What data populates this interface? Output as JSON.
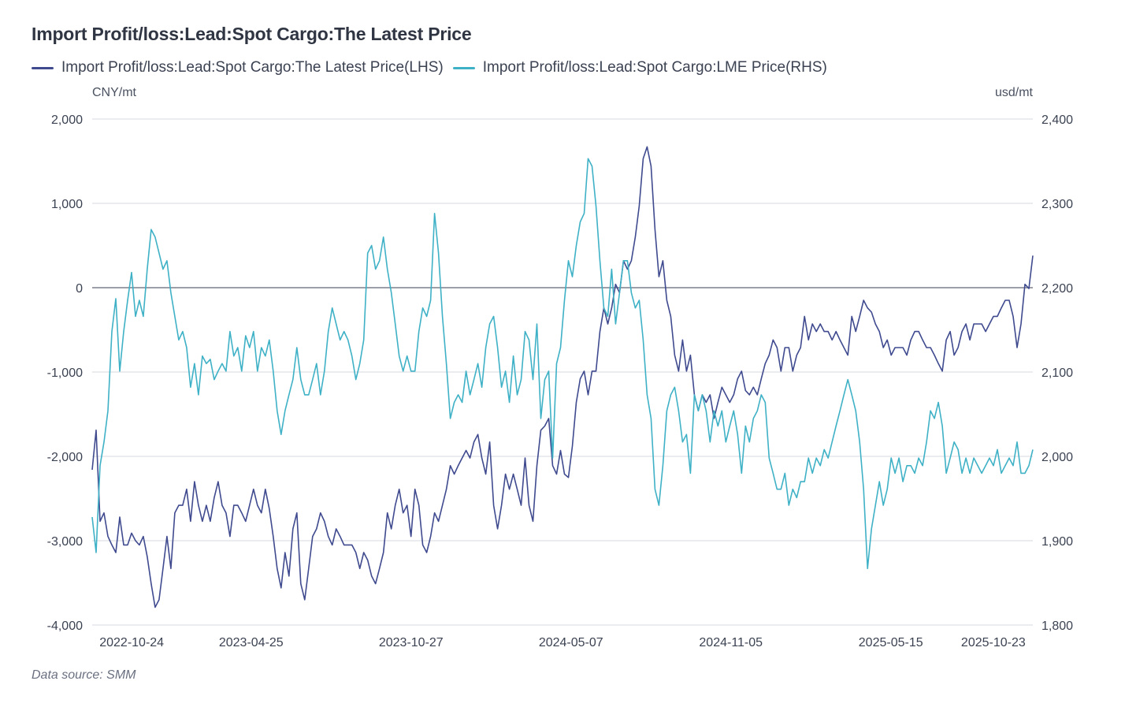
{
  "header": {
    "title": "Import Profit/loss:Lead:Spot Cargo:The Latest Price"
  },
  "legend": [
    {
      "label": "Import Profit/loss:Lead:Spot Cargo:The Latest Price(LHS)",
      "color": "#3f4a8f"
    },
    {
      "label": "Import Profit/loss:Lead:Spot Cargo:LME Price(RHS)",
      "color": "#3fb1c6"
    }
  ],
  "axes": {
    "left_unit": "CNY/mt",
    "right_unit": "usd/mt"
  },
  "footer": {
    "source": "Data source:  SMM"
  },
  "chart_data": {
    "type": "line",
    "title": "Import Profit/loss:Lead:Spot Cargo:The Latest Price",
    "xlabel": "",
    "ylabel_left": "CNY/mt",
    "ylabel_right": "usd/mt",
    "grid": true,
    "legend_position": "top-left",
    "x_tick_labels": [
      {
        "label": "2022-10-24",
        "pos": 0.042
      },
      {
        "label": "2023-04-25",
        "pos": 0.169
      },
      {
        "label": "2023-10-27",
        "pos": 0.339
      },
      {
        "label": "2024-05-07",
        "pos": 0.509
      },
      {
        "label": "2024-11-05",
        "pos": 0.679
      },
      {
        "label": "2025-05-15",
        "pos": 0.849
      },
      {
        "label": "2025-10-23",
        "pos": 0.958
      }
    ],
    "y_left": {
      "min": -4000,
      "max": 2000,
      "ticks": [
        2000,
        1000,
        0,
        -1000,
        -2000,
        -3000,
        -4000
      ],
      "tick_labels": [
        "2,000",
        "1,000",
        "0",
        "-1,000",
        "-2,000",
        "-3,000",
        "-4,000"
      ]
    },
    "y_right": {
      "min": 1800,
      "max": 2400,
      "ticks": [
        2400,
        2300,
        2200,
        2100,
        2000,
        1900,
        1800
      ],
      "tick_labels": [
        "2,400",
        "2,300",
        "2,200",
        "2,100",
        "2,000",
        "1,900",
        "1,800"
      ]
    },
    "zero_line_left": 0,
    "series": [
      {
        "name": "Import Profit/loss:Lead:Spot Cargo:The Latest Price(LHS)",
        "axis": "left",
        "color": "#3f4a8f",
        "values": [
          -2160,
          -1690,
          -2770,
          -2670,
          -2950,
          -3050,
          -3140,
          -2720,
          -3050,
          -3050,
          -2910,
          -3000,
          -3050,
          -2950,
          -3190,
          -3510,
          -3790,
          -3700,
          -3330,
          -2950,
          -3330,
          -2670,
          -2580,
          -2580,
          -2390,
          -2770,
          -2300,
          -2580,
          -2770,
          -2580,
          -2770,
          -2490,
          -2300,
          -2580,
          -2670,
          -2950,
          -2580,
          -2580,
          -2670,
          -2770,
          -2580,
          -2390,
          -2580,
          -2670,
          -2390,
          -2620,
          -2950,
          -3330,
          -3560,
          -3140,
          -3420,
          -2860,
          -2670,
          -3510,
          -3700,
          -3330,
          -2950,
          -2860,
          -2670,
          -2770,
          -2950,
          -3050,
          -2860,
          -2950,
          -3050,
          -3050,
          -3050,
          -3140,
          -3330,
          -3140,
          -3230,
          -3420,
          -3510,
          -3330,
          -3140,
          -2670,
          -2860,
          -2580,
          -2390,
          -2670,
          -2580,
          -2950,
          -2390,
          -2580,
          -3050,
          -3140,
          -2950,
          -2670,
          -2770,
          -2580,
          -2390,
          -2110,
          -2210,
          -2110,
          -2020,
          -1930,
          -2020,
          -1830,
          -1740,
          -2020,
          -2210,
          -1830,
          -2580,
          -2860,
          -2580,
          -2210,
          -2390,
          -2210,
          -2390,
          -2580,
          -2020,
          -2580,
          -2770,
          -2110,
          -1690,
          -1640,
          -1550,
          -2110,
          -2210,
          -1930,
          -2210,
          -2250,
          -1880,
          -1360,
          -1080,
          -990,
          -1270,
          -990,
          -990,
          -520,
          -240,
          -430,
          -240,
          40,
          -60,
          320,
          220,
          320,
          600,
          970,
          1530,
          1670,
          1440,
          690,
          130,
          320,
          -150,
          -340,
          -800,
          -990,
          -620,
          -990,
          -800,
          -1270,
          -1460,
          -1270,
          -1360,
          -1270,
          -1550,
          -1360,
          -1180,
          -1270,
          -1360,
          -1270,
          -1080,
          -990,
          -1220,
          -1270,
          -1180,
          -1270,
          -1080,
          -900,
          -800,
          -620,
          -710,
          -990,
          -710,
          -710,
          -990,
          -800,
          -710,
          -340,
          -620,
          -430,
          -520,
          -430,
          -520,
          -520,
          -620,
          -520,
          -620,
          -710,
          -800,
          -340,
          -520,
          -340,
          -150,
          -240,
          -290,
          -430,
          -520,
          -710,
          -620,
          -800,
          -710,
          -710,
          -710,
          -800,
          -620,
          -520,
          -520,
          -620,
          -710,
          -710,
          -800,
          -900,
          -990,
          -620,
          -520,
          -800,
          -710,
          -520,
          -430,
          -620,
          -430,
          -430,
          -430,
          -520,
          -430,
          -340,
          -340,
          -240,
          -150,
          -150,
          -340,
          -710,
          -430,
          40,
          -10,
          380
        ]
      },
      {
        "name": "Import Profit/loss:Lead:Spot Cargo:LME Price(RHS)",
        "axis": "right",
        "color": "#3fb1c6",
        "values": [
          1928,
          1886,
          1989,
          2017,
          2054,
          2148,
          2187,
          2101,
          2148,
          2185,
          2218,
          2166,
          2185,
          2166,
          2222,
          2269,
          2260,
          2241,
          2222,
          2232,
          2194,
          2166,
          2138,
          2148,
          2129,
          2082,
          2110,
          2073,
          2119,
          2110,
          2115,
          2091,
          2101,
          2110,
          2101,
          2148,
          2119,
          2129,
          2101,
          2143,
          2129,
          2148,
          2101,
          2129,
          2119,
          2138,
          2101,
          2054,
          2026,
          2054,
          2073,
          2091,
          2129,
          2091,
          2073,
          2073,
          2091,
          2110,
          2073,
          2101,
          2148,
          2176,
          2157,
          2138,
          2148,
          2138,
          2119,
          2091,
          2110,
          2138,
          2241,
          2250,
          2222,
          2232,
          2260,
          2222,
          2194,
          2157,
          2119,
          2101,
          2119,
          2101,
          2101,
          2148,
          2176,
          2166,
          2185,
          2288,
          2241,
          2166,
          2110,
          2045,
          2064,
          2073,
          2064,
          2101,
          2073,
          2091,
          2110,
          2082,
          2129,
          2157,
          2166,
          2129,
          2082,
          2101,
          2064,
          2119,
          2073,
          2091,
          2148,
          2138,
          2091,
          2157,
          2045,
          2091,
          2101,
          1998,
          2110,
          2129,
          2185,
          2232,
          2213,
          2250,
          2278,
          2288,
          2353,
          2344,
          2297,
          2232,
          2176,
          2166,
          2222,
          2157,
          2194,
          2232,
          2232,
          2194,
          2176,
          2185,
          2138,
          2073,
          2045,
          1961,
          1942,
          1989,
          2054,
          2073,
          2082,
          2054,
          2017,
          2026,
          1980,
          2073,
          2054,
          2073,
          2054,
          2017,
          2054,
          2036,
          2054,
          2017,
          2036,
          2054,
          2026,
          1980,
          2036,
          2017,
          2045,
          2054,
          2073,
          2064,
          1998,
          1980,
          1961,
          1961,
          1980,
          1942,
          1961,
          1951,
          1970,
          1970,
          1998,
          1980,
          1998,
          1989,
          2008,
          1998,
          2017,
          2036,
          2054,
          2073,
          2091,
          2073,
          2054,
          2017,
          1961,
          1867,
          1914,
          1942,
          1970,
          1942,
          1961,
          1998,
          1980,
          1998,
          1970,
          1989,
          1989,
          1980,
          1998,
          1989,
          2017,
          2054,
          2045,
          2064,
          2036,
          1980,
          1998,
          2017,
          2008,
          1980,
          1998,
          1980,
          1998,
          1989,
          1980,
          1989,
          1998,
          1989,
          2008,
          1980,
          1989,
          1998,
          1989,
          2017,
          1980,
          1980,
          1989,
          2008
        ]
      }
    ]
  }
}
